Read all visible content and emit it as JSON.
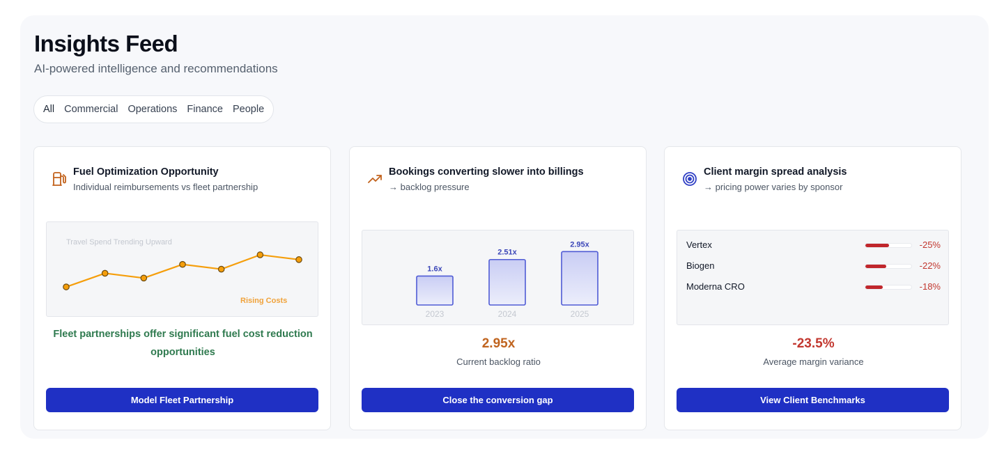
{
  "header": {
    "title": "Insights Feed",
    "subtitle": "AI-powered intelligence and recommendations"
  },
  "filters": [
    "All",
    "Commercial",
    "Operations",
    "Finance",
    "People"
  ],
  "cards": [
    {
      "icon": "fuel-pump-icon",
      "title": "Fuel Optimization Opportunity",
      "subtitle": "Individual reimbursements vs fleet partnership",
      "chart_label": "Travel Spend Trending Upward",
      "chart_annotation": "Rising Costs",
      "insight": "Fleet partnerships offer significant fuel cost reduction opportunities",
      "cta": "Model Fleet Partnership"
    },
    {
      "icon": "trending-up-icon",
      "title": "Bookings converting slower into billings",
      "subtitle": "→ backlog pressure",
      "metric_value": "2.95x",
      "metric_label": "Current backlog ratio",
      "cta": "Close the conversion gap"
    },
    {
      "icon": "target-icon",
      "title": "Client margin spread analysis",
      "subtitle": "→ pricing power varies by sponsor",
      "rows": [
        {
          "name": "Vertex",
          "value": "-25%",
          "fill": 0.52
        },
        {
          "name": "Biogen",
          "value": "-22%",
          "fill": 0.46
        },
        {
          "name": "Moderna CRO",
          "value": "-18%",
          "fill": 0.38
        }
      ],
      "metric_value": "-23.5%",
      "metric_label": "Average margin variance",
      "cta": "View Client Benchmarks"
    }
  ],
  "chart_data": [
    {
      "type": "line",
      "title": "Travel Spend Trending Upward",
      "x": [
        1,
        2,
        3,
        4,
        5,
        6,
        7
      ],
      "y": [
        2,
        22,
        15,
        35,
        28,
        49,
        42
      ],
      "color": "#f59e0b",
      "annotation": "Rising Costs"
    },
    {
      "type": "bar",
      "categories": [
        "2023",
        "2024",
        "2025"
      ],
      "values": [
        1.6,
        2.51,
        2.95
      ],
      "value_labels": [
        "1.6x",
        "2.51x",
        "2.95x"
      ],
      "color": "#4f5bd5"
    }
  ],
  "colors": {
    "primary": "#1f30c4",
    "positive": "#2f7a4f",
    "negative": "#c2372f",
    "warning": "#f59e0b"
  }
}
